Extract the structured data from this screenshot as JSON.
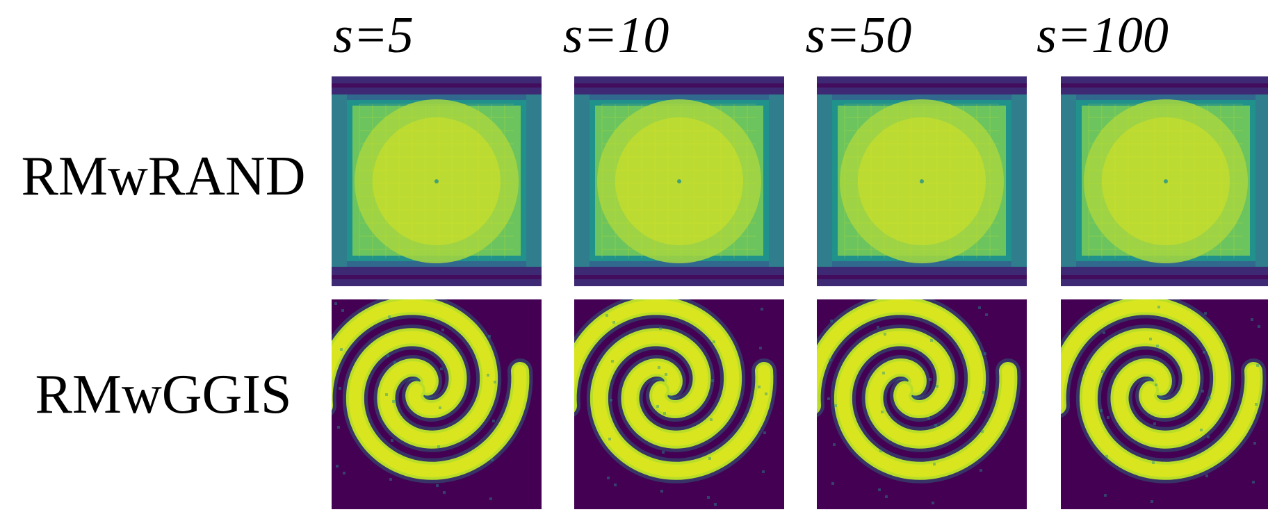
{
  "figure": {
    "columns": [
      {
        "label": "s=5"
      },
      {
        "label": "s=10"
      },
      {
        "label": "s=50"
      },
      {
        "label": "s=100"
      }
    ],
    "rows": [
      {
        "label": "RMwRAND",
        "pattern": "uniform-square-heatmap"
      },
      {
        "label": "RMwGGIS",
        "pattern": "two-arm-spiral-heatmap"
      }
    ],
    "colormap": {
      "name": "viridis",
      "low": "#440154",
      "mid_low": "#31688e",
      "mid": "#21918c",
      "mid_high": "#35b779",
      "high": "#d9e51f"
    }
  }
}
